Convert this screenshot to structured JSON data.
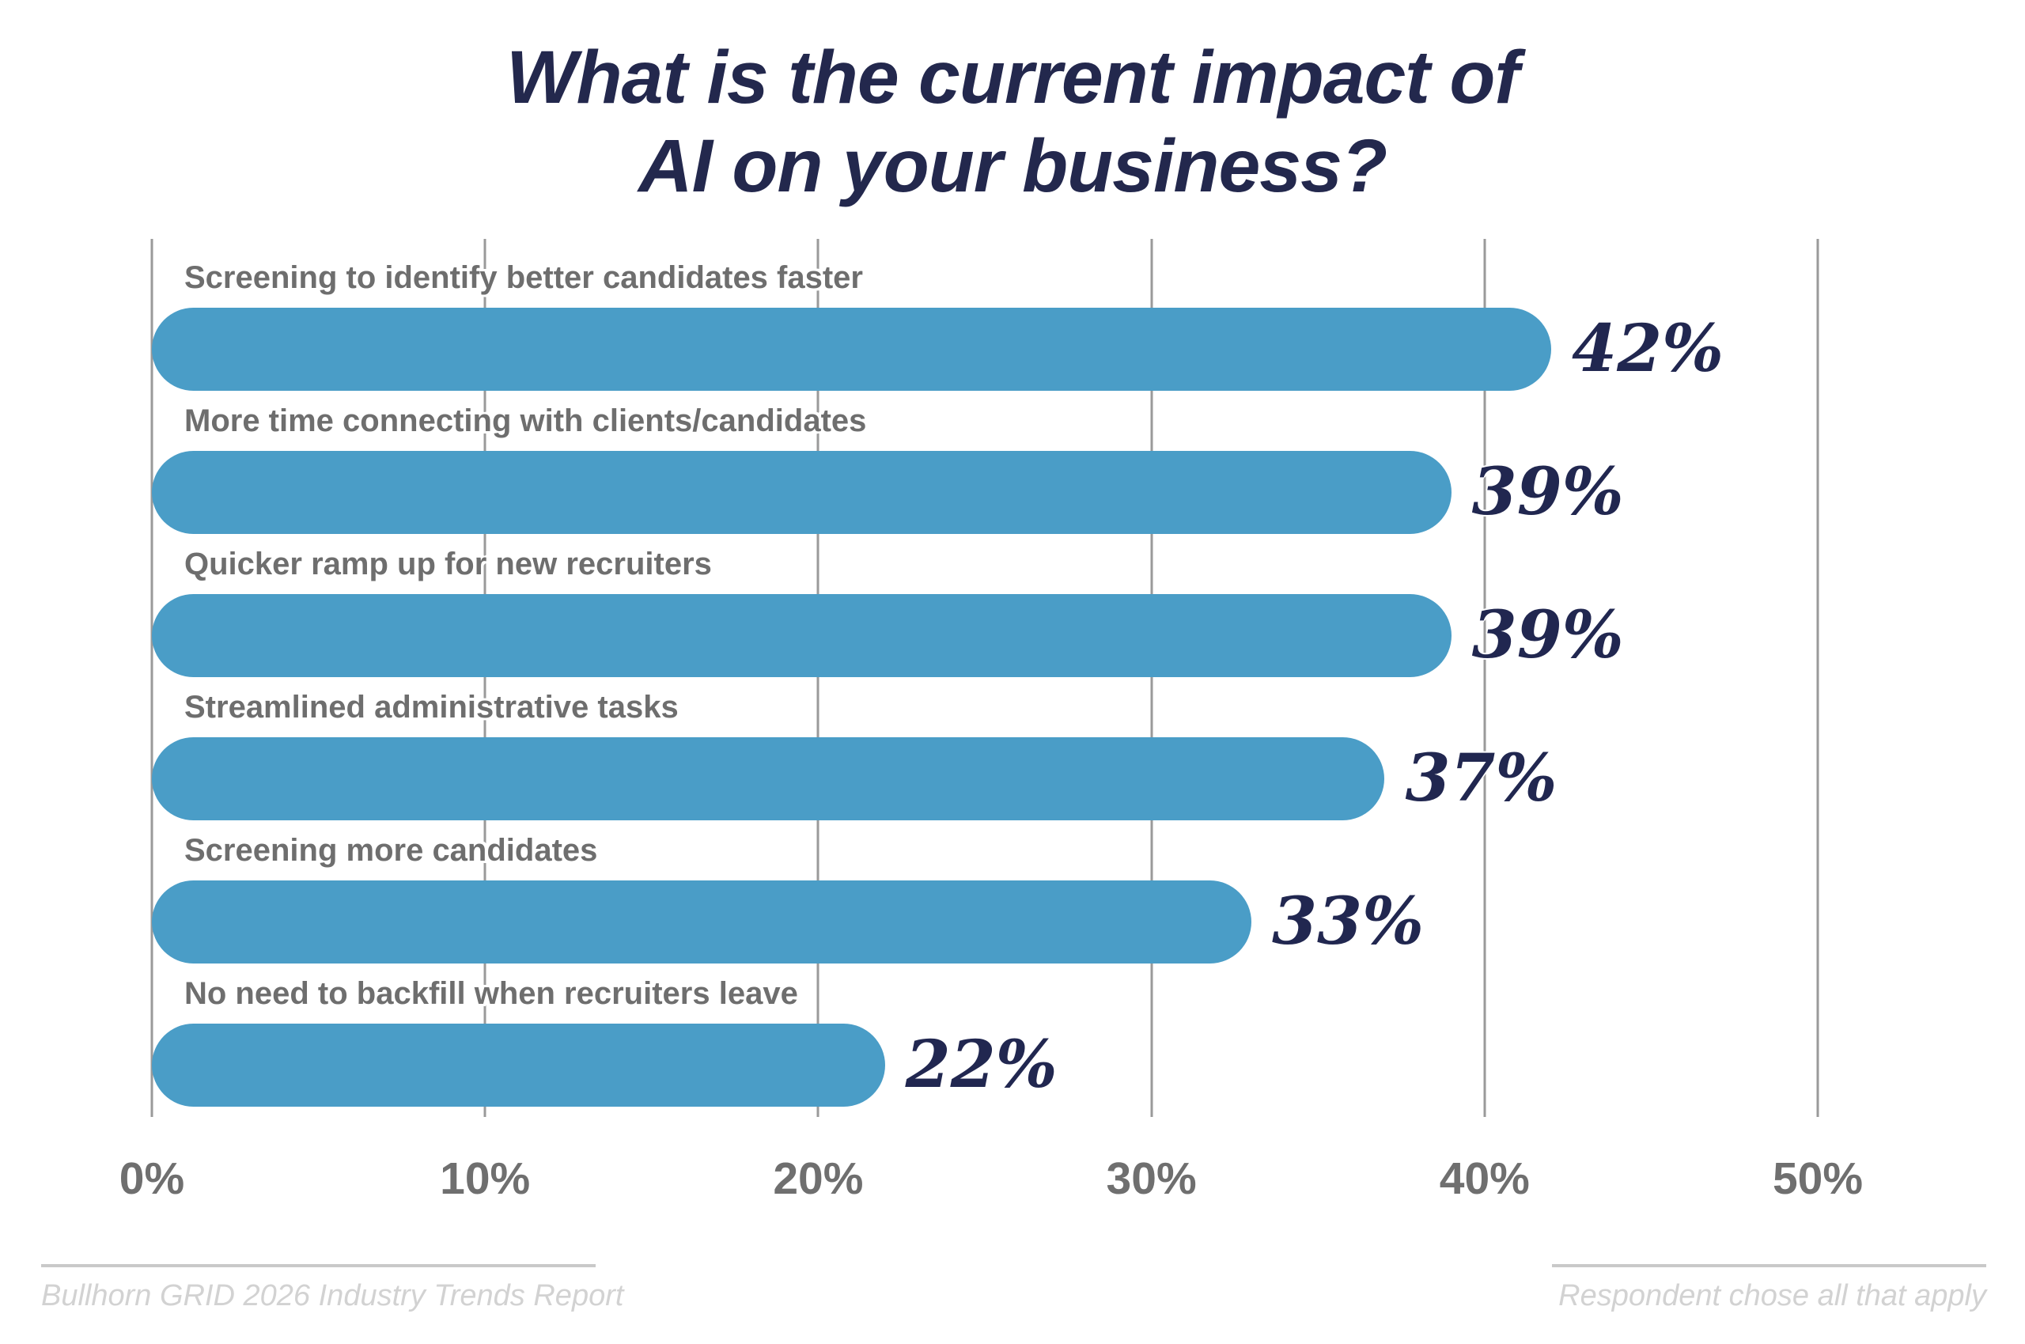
{
  "title": {
    "line1": "What is the current impact of",
    "line2": "AI on your business?"
  },
  "chart_data": {
    "type": "bar",
    "orientation": "horizontal",
    "title": "What is the current impact of AI on your business?",
    "categories": [
      "Screening to identify better candidates faster",
      "More time connecting with clients/candidates",
      "Quicker ramp up for new recruiters",
      "Streamlined administrative tasks",
      "Screening more candidates",
      "No need to backfill when recruiters leave"
    ],
    "values": [
      42,
      39,
      39,
      37,
      33,
      22
    ],
    "value_labels": [
      "42%",
      "39%",
      "39%",
      "37%",
      "33%",
      "22%"
    ],
    "xlim": [
      0,
      50
    ],
    "x_ticks": [
      "0%",
      "10%",
      "20%",
      "30%",
      "40%",
      "50%"
    ],
    "x_tick_values": [
      0,
      10,
      20,
      30,
      40,
      50
    ],
    "grid": true,
    "legend": false,
    "bar_color": "#4a9dc7",
    "value_label_color": "#212750",
    "category_label_color": "#6e6e6e",
    "gridline_color": "#9a9a9a",
    "title_color": "#23284d"
  },
  "footer": {
    "source": "Bullhorn GRID 2026 Industry Trends Report",
    "note": "Respondent chose all that apply"
  }
}
